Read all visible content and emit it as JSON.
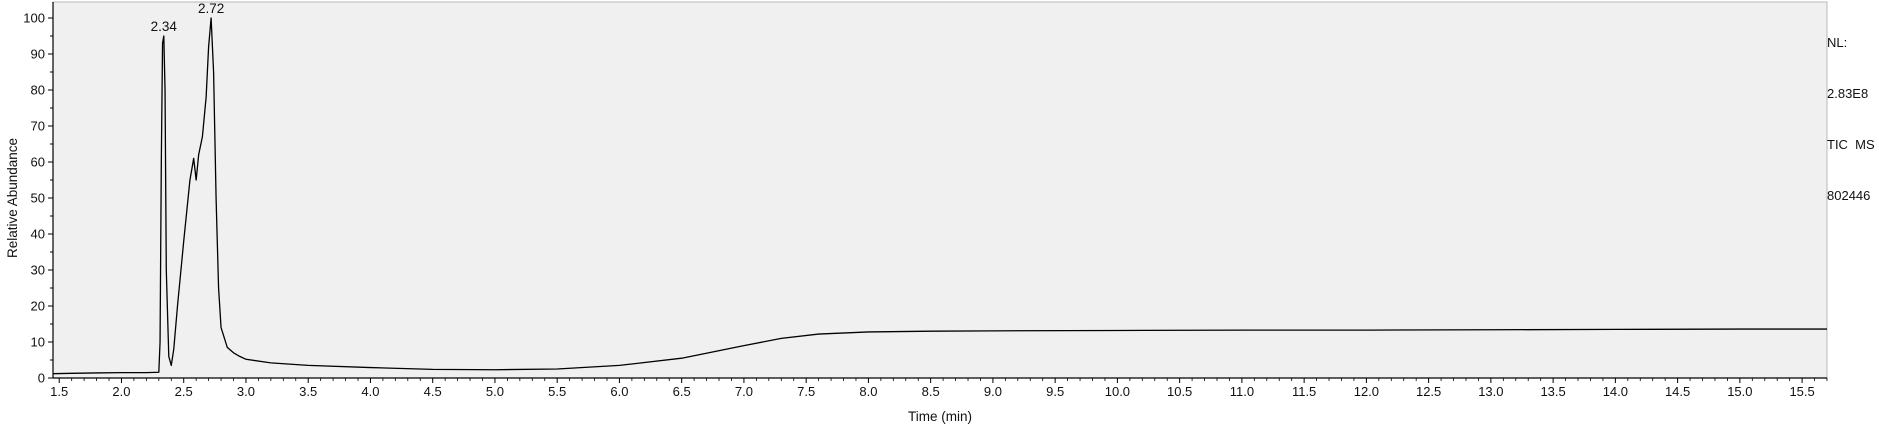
{
  "chart_data": {
    "type": "line",
    "title": "",
    "xlabel": "Time (min)",
    "ylabel": "Relative Abundance",
    "xlim": [
      1.45,
      15.7
    ],
    "ylim": [
      0,
      100
    ],
    "grid": false,
    "x_ticks": [
      1.5,
      2.0,
      2.5,
      3.0,
      3.5,
      4.0,
      4.5,
      5.0,
      5.5,
      6.0,
      6.5,
      7.0,
      7.5,
      8.0,
      8.5,
      9.0,
      9.5,
      10.0,
      10.5,
      11.0,
      11.5,
      12.0,
      12.5,
      13.0,
      13.5,
      14.0,
      14.5,
      15.0,
      15.5
    ],
    "x_tick_labels": [
      "1.5",
      "2.0",
      "2.5",
      "3.0",
      "3.5",
      "4.0",
      "4.5",
      "5.0",
      "5.5",
      "6.0",
      "6.5",
      "7.0",
      "7.5",
      "8.0",
      "8.5",
      "9.0",
      "9.5",
      "10.0",
      "10.5",
      "11.0",
      "11.5",
      "12.0",
      "12.5",
      "13.0",
      "13.5",
      "14.0",
      "14.5",
      "15.0",
      "15.5"
    ],
    "y_ticks": [
      0,
      10,
      20,
      30,
      40,
      50,
      60,
      70,
      80,
      90,
      100
    ],
    "y_tick_labels": [
      "0",
      "10",
      "20",
      "30",
      "40",
      "50",
      "60",
      "70",
      "80",
      "90",
      "100"
    ],
    "peak_labels": [
      {
        "x": 2.34,
        "y": 95,
        "text": "2.34"
      },
      {
        "x": 2.72,
        "y": 100,
        "text": "2.72"
      }
    ],
    "series": [
      {
        "name": "TIC MS 802446",
        "color": "#000000",
        "x": [
          1.45,
          1.6,
          1.8,
          2.0,
          2.1,
          2.2,
          2.3,
          2.31,
          2.32,
          2.33,
          2.34,
          2.35,
          2.36,
          2.38,
          2.4,
          2.42,
          2.45,
          2.5,
          2.55,
          2.58,
          2.6,
          2.62,
          2.65,
          2.68,
          2.7,
          2.72,
          2.74,
          2.76,
          2.78,
          2.8,
          2.85,
          2.9,
          2.95,
          3.0,
          3.2,
          3.5,
          4.0,
          4.5,
          5.0,
          5.5,
          6.0,
          6.5,
          7.0,
          7.3,
          7.6,
          8.0,
          8.5,
          9.0,
          10.0,
          11.0,
          12.0,
          13.0,
          14.0,
          15.0,
          15.7
        ],
        "y": [
          1.2,
          1.3,
          1.4,
          1.5,
          1.5,
          1.5,
          1.6,
          10,
          60,
          93,
          95,
          80,
          30,
          6,
          3.5,
          8,
          20,
          38,
          55,
          61,
          55,
          62,
          67,
          78,
          92,
          100,
          85,
          50,
          25,
          14,
          8.5,
          7,
          6,
          5.2,
          4.2,
          3.5,
          2.9,
          2.4,
          2.3,
          2.5,
          3.5,
          5.5,
          9,
          11,
          12.2,
          12.8,
          13.0,
          13.1,
          13.2,
          13.3,
          13.3,
          13.4,
          13.5,
          13.6,
          13.6
        ]
      }
    ],
    "info": {
      "nl_label": "NL:",
      "nl_value": "2.83E8",
      "trace_type": "TIC  MS",
      "sample_id": "802446"
    }
  }
}
